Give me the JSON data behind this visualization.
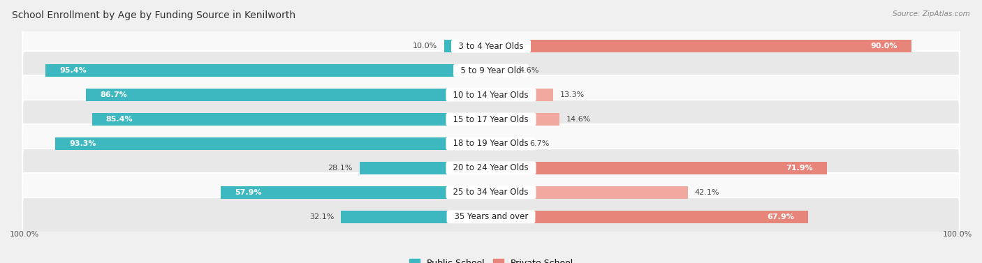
{
  "title": "School Enrollment by Age by Funding Source in Kenilworth",
  "source": "Source: ZipAtlas.com",
  "categories": [
    "3 to 4 Year Olds",
    "5 to 9 Year Old",
    "10 to 14 Year Olds",
    "15 to 17 Year Olds",
    "18 to 19 Year Olds",
    "20 to 24 Year Olds",
    "25 to 34 Year Olds",
    "35 Years and over"
  ],
  "public_values": [
    10.0,
    95.4,
    86.7,
    85.4,
    93.3,
    28.1,
    57.9,
    32.1
  ],
  "private_values": [
    90.0,
    4.6,
    13.3,
    14.6,
    6.7,
    71.9,
    42.1,
    67.9
  ],
  "public_color": "#3db8c0",
  "private_color": "#e8857a",
  "private_color_light": "#f0a89f",
  "bg_color": "#f0f0f0",
  "row_bg_white": "#f9f9f9",
  "row_bg_gray": "#e8e8e8",
  "title_fontsize": 10,
  "label_fontsize": 8.5,
  "value_fontsize": 8,
  "legend_fontsize": 9,
  "axis_label_fontsize": 8
}
